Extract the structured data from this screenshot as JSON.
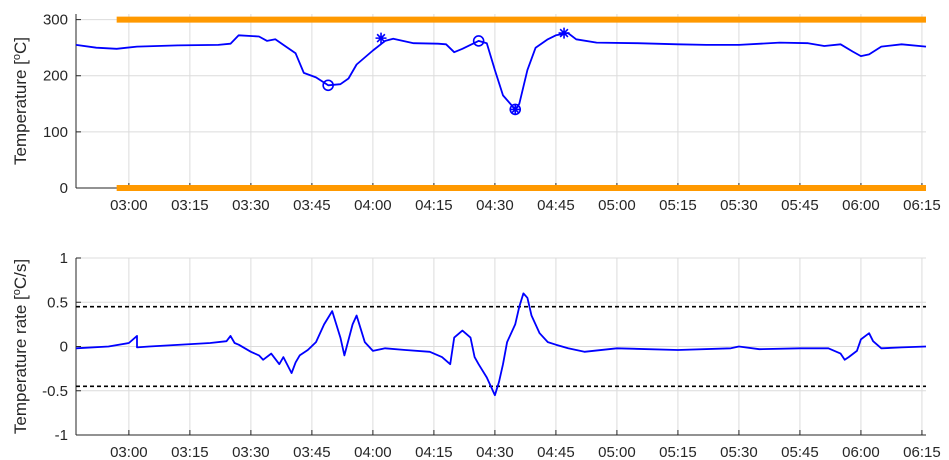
{
  "chart_data": [
    {
      "type": "line",
      "ylabel": "Temperature [",
      "ylabel_sup": "o",
      "ylabel_tail": "C]",
      "xlabel": "",
      "xlim": [
        "02:47",
        "06:16"
      ],
      "ylim": [
        0,
        310
      ],
      "yticks": [
        0,
        100,
        200,
        300
      ],
      "xtick_labels": [
        "03:00",
        "03:15",
        "03:30",
        "03:45",
        "04:00",
        "04:15",
        "04:30",
        "04:45",
        "05:00",
        "05:15",
        "05:30",
        "05:45",
        "06:00",
        "06:15"
      ],
      "grid": true,
      "series": [
        {
          "color": "#0000ff",
          "x": [
            "02:47",
            "02:52",
            "02:57",
            "03:02",
            "03:12",
            "03:22",
            "03:25",
            "03:27",
            "03:32",
            "03:34",
            "03:36",
            "03:38",
            "03:41",
            "03:43",
            "03:46",
            "03:49",
            "03:52",
            "03:54",
            "03:56",
            "04:00",
            "04:03",
            "04:05",
            "04:10",
            "04:16",
            "04:18",
            "04:20",
            "04:22",
            "04:26",
            "04:28",
            "04:30",
            "04:32",
            "04:35",
            "04:36",
            "04:38",
            "04:40",
            "04:43",
            "04:45",
            "04:48",
            "04:50",
            "04:55",
            "05:05",
            "05:15",
            "05:22",
            "05:30",
            "05:40",
            "05:47",
            "05:51",
            "05:55",
            "05:58",
            "06:00",
            "06:02",
            "06:05",
            "06:10",
            "06:16"
          ],
          "y": [
            255,
            250,
            248,
            252,
            254,
            255,
            257,
            272,
            270,
            262,
            265,
            255,
            240,
            205,
            197,
            183,
            185,
            195,
            220,
            245,
            262,
            266,
            258,
            257,
            256,
            242,
            248,
            262,
            258,
            210,
            165,
            140,
            150,
            210,
            250,
            265,
            272,
            276,
            265,
            259,
            258,
            256,
            255,
            255,
            259,
            258,
            253,
            256,
            243,
            235,
            238,
            252,
            256,
            252
          ]
        }
      ],
      "thresholds": [
        {
          "value": 0,
          "color": "#ff9900",
          "from": "02:57"
        },
        {
          "value": 300,
          "color": "#ff9900",
          "from": "02:57"
        }
      ],
      "markers": [
        {
          "x": "03:49",
          "y": 183,
          "shape": "circle"
        },
        {
          "x": "04:02",
          "y": 267,
          "shape": "asterisk"
        },
        {
          "x": "04:26",
          "y": 262,
          "shape": "circle"
        },
        {
          "x": "04:35",
          "y": 140,
          "shape": "circle"
        },
        {
          "x": "04:35",
          "y": 140,
          "shape": "asterisk"
        },
        {
          "x": "04:47",
          "y": 276,
          "shape": "asterisk"
        }
      ]
    },
    {
      "type": "line",
      "ylabel": "Temperature rate [",
      "ylabel_sup": "o",
      "ylabel_tail": "C/s]",
      "xlabel": "",
      "xlim": [
        "02:47",
        "06:16"
      ],
      "ylim": [
        -1,
        1
      ],
      "yticks": [
        -1,
        -0.5,
        0,
        0.5,
        1
      ],
      "xtick_labels": [
        "03:00",
        "03:15",
        "03:30",
        "03:45",
        "04:00",
        "04:15",
        "04:30",
        "04:45",
        "05:00",
        "05:15",
        "05:30",
        "05:45",
        "06:00",
        "06:15"
      ],
      "grid": true,
      "series": [
        {
          "color": "#0000ff",
          "x": [
            "02:47",
            "02:55",
            "03:00",
            "03:02",
            "03:02",
            "03:05",
            "03:20",
            "03:24",
            "03:25",
            "03:26",
            "03:27",
            "03:30",
            "03:32",
            "03:33",
            "03:35",
            "03:37",
            "03:38",
            "03:40",
            "03:41",
            "03:42",
            "03:44",
            "03:46",
            "03:48",
            "03:50",
            "03:51",
            "03:52",
            "03:53",
            "03:55",
            "03:56",
            "03:57",
            "03:58",
            "04:00",
            "04:03",
            "04:08",
            "04:14",
            "04:17",
            "04:19",
            "04:20",
            "04:22",
            "04:24",
            "04:25",
            "04:26",
            "04:28",
            "04:29",
            "04:30",
            "04:31",
            "04:32",
            "04:33",
            "04:35",
            "04:36",
            "04:37",
            "04:38",
            "04:39",
            "04:41",
            "04:43",
            "04:45",
            "04:48",
            "04:52",
            "05:00",
            "05:15",
            "05:28",
            "05:30",
            "05:35",
            "05:45",
            "05:52",
            "05:55",
            "05:56",
            "05:57",
            "05:59",
            "06:00",
            "06:02",
            "06:03",
            "06:05",
            "06:10",
            "06:16"
          ],
          "y": [
            -0.02,
            0.0,
            0.04,
            0.12,
            -0.01,
            0.0,
            0.04,
            0.06,
            0.12,
            0.04,
            0.02,
            -0.06,
            -0.1,
            -0.15,
            -0.08,
            -0.2,
            -0.12,
            -0.3,
            -0.18,
            -0.1,
            -0.04,
            0.05,
            0.25,
            0.4,
            0.25,
            0.1,
            -0.1,
            0.25,
            0.35,
            0.2,
            0.05,
            -0.05,
            -0.02,
            -0.04,
            -0.06,
            -0.12,
            -0.2,
            0.1,
            0.18,
            0.1,
            -0.12,
            -0.2,
            -0.35,
            -0.45,
            -0.55,
            -0.4,
            -0.2,
            0.05,
            0.25,
            0.45,
            0.6,
            0.55,
            0.35,
            0.15,
            0.05,
            0.02,
            -0.02,
            -0.06,
            -0.02,
            -0.04,
            -0.02,
            0.0,
            -0.03,
            -0.02,
            -0.02,
            -0.08,
            -0.15,
            -0.12,
            -0.05,
            0.08,
            0.15,
            0.06,
            -0.02,
            -0.01,
            0.0
          ]
        }
      ],
      "thresholds": [
        {
          "value": 0.45,
          "color": "#000000",
          "dashed": true,
          "from": "02:47"
        },
        {
          "value": -0.45,
          "color": "#000000",
          "dashed": true,
          "from": "02:47"
        }
      ]
    }
  ]
}
